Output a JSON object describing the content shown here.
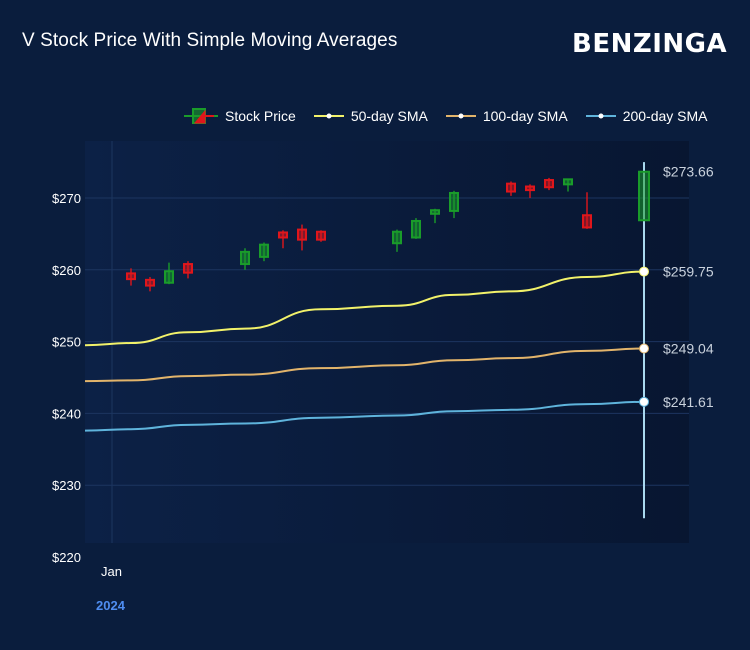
{
  "title": "V Stock Price With Simple Moving Averages",
  "brand": "BENZINGA",
  "colors": {
    "background": "#0a1d3d",
    "up": "#1a9c2a",
    "down": "#e0161b",
    "sma50": "#f2f26a",
    "sma100": "#e2b46b",
    "sma200": "#5fb4dc",
    "year": "#4f8df0"
  },
  "legend": [
    {
      "label": "Stock Price",
      "icon": "candlestick-icon"
    },
    {
      "label": "50-day SMA",
      "icon": "line-marker-icon"
    },
    {
      "label": "100-day SMA",
      "icon": "line-marker-icon"
    },
    {
      "label": "200-day SMA",
      "icon": "line-marker-icon"
    }
  ],
  "year_label": "2024",
  "chart_data": {
    "type": "candlestick",
    "x_tick_labels": [
      "Jan"
    ],
    "y_ticks": [
      "$220",
      "$230",
      "$240",
      "$250",
      "$260",
      "$270"
    ],
    "ylim": [
      220,
      278
    ],
    "grid": true,
    "legend_position": "top",
    "candles": [
      {
        "open": 259.5,
        "high": 260.2,
        "low": 257.8,
        "close": 258.7
      },
      {
        "open": 258.6,
        "high": 259.0,
        "low": 257.0,
        "close": 257.8
      },
      {
        "open": 258.2,
        "high": 261.0,
        "low": 258.0,
        "close": 259.8
      },
      {
        "open": 260.8,
        "high": 261.2,
        "low": 258.8,
        "close": 259.6
      },
      {
        "open": 260.8,
        "high": 263.0,
        "low": 260.0,
        "close": 262.5
      },
      {
        "open": 261.8,
        "high": 263.8,
        "low": 261.2,
        "close": 263.5
      },
      {
        "open": 265.2,
        "high": 265.5,
        "low": 263.0,
        "close": 264.5
      },
      {
        "open": 265.6,
        "high": 266.3,
        "low": 262.7,
        "close": 264.2
      },
      {
        "open": 265.3,
        "high": 265.5,
        "low": 263.9,
        "close": 264.2
      },
      {
        "open": 263.7,
        "high": 265.6,
        "low": 262.5,
        "close": 265.3
      },
      {
        "open": 264.5,
        "high": 267.2,
        "low": 264.3,
        "close": 266.8
      },
      {
        "open": 267.8,
        "high": 268.5,
        "low": 266.5,
        "close": 268.3
      },
      {
        "open": 268.2,
        "high": 271.0,
        "low": 267.2,
        "close": 270.7
      },
      {
        "open": 272.0,
        "high": 272.3,
        "low": 270.3,
        "close": 270.9
      },
      {
        "open": 271.6,
        "high": 271.9,
        "low": 270.0,
        "close": 271.1
      },
      {
        "open": 272.5,
        "high": 272.8,
        "low": 271.1,
        "close": 271.5
      },
      {
        "open": 271.9,
        "high": 272.7,
        "low": 270.9,
        "close": 272.6
      },
      {
        "open": 267.6,
        "high": 270.8,
        "low": 265.7,
        "close": 265.9
      },
      {
        "open": 266.9,
        "high": 275.0,
        "low": 225.4,
        "close": 273.66
      }
    ],
    "series": [
      {
        "name": "50-day SMA",
        "values": [
          249.5,
          249.8,
          251.3,
          251.8,
          254.5,
          255.0,
          256.5,
          257.0,
          259.0,
          259.75
        ]
      },
      {
        "name": "100-day SMA",
        "values": [
          244.5,
          244.6,
          245.2,
          245.4,
          246.3,
          246.7,
          247.4,
          247.7,
          248.7,
          249.04
        ]
      },
      {
        "name": "200-day SMA",
        "values": [
          237.6,
          237.8,
          238.4,
          238.6,
          239.4,
          239.7,
          240.3,
          240.5,
          241.3,
          241.61
        ]
      }
    ],
    "end_labels": [
      "$273.66",
      "$259.75",
      "$249.04",
      "$241.61"
    ]
  }
}
